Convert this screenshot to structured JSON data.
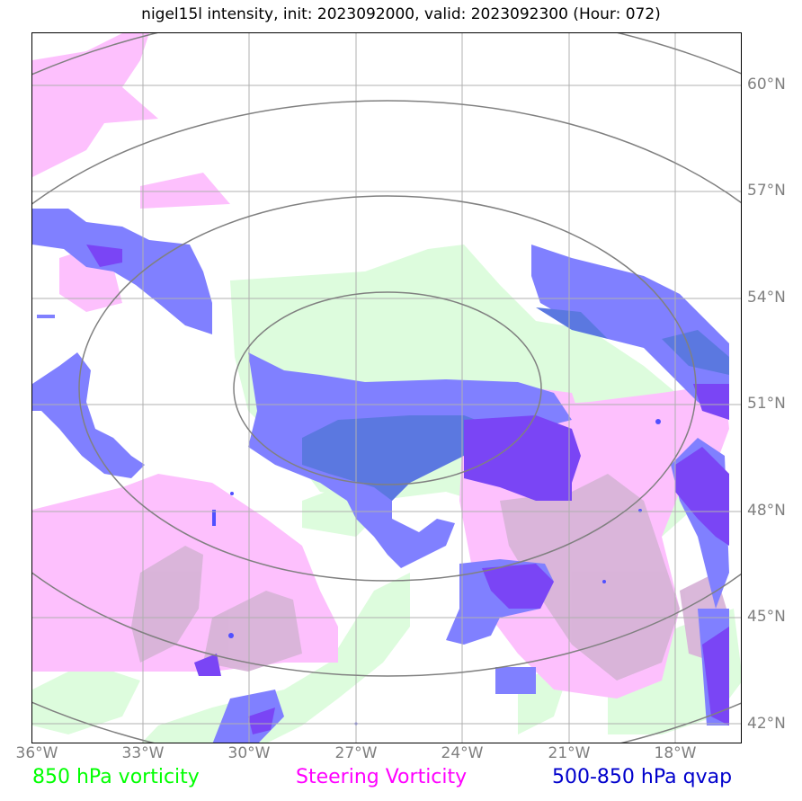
{
  "title": "nigel15l intensity, init: 2023092000, valid: 2023092300 (Hour: 072)",
  "lat_labels": [
    "60°N",
    "57°N",
    "54°N",
    "51°N",
    "48°N",
    "45°N",
    "42°N"
  ],
  "lon_labels": [
    "36°W",
    "33°W",
    "30°W",
    "27°W",
    "24°W",
    "21°W",
    "18°W"
  ],
  "legend": {
    "vorticity_850": "850 hPa vorticity",
    "steering_vorticity": "Steering Vorticity",
    "qvap": "500-850 hPa qvap"
  },
  "colors": {
    "vorticity_850": "#00ff00",
    "steering_vorticity": "#ff00ff",
    "qvap": "#0000cc",
    "light_green_fill": "#ddfcdd",
    "pink_fill": "#fdc0fd",
    "blue_fill": "#8080ff",
    "purple_fill": "#7a45f5",
    "gridline": "#b0b0b0",
    "range_ring": "#808080"
  },
  "extent": {
    "lon_min": -36,
    "lon_max": -16.75,
    "lat_min": 41.5,
    "lat_max": 61.5
  }
}
